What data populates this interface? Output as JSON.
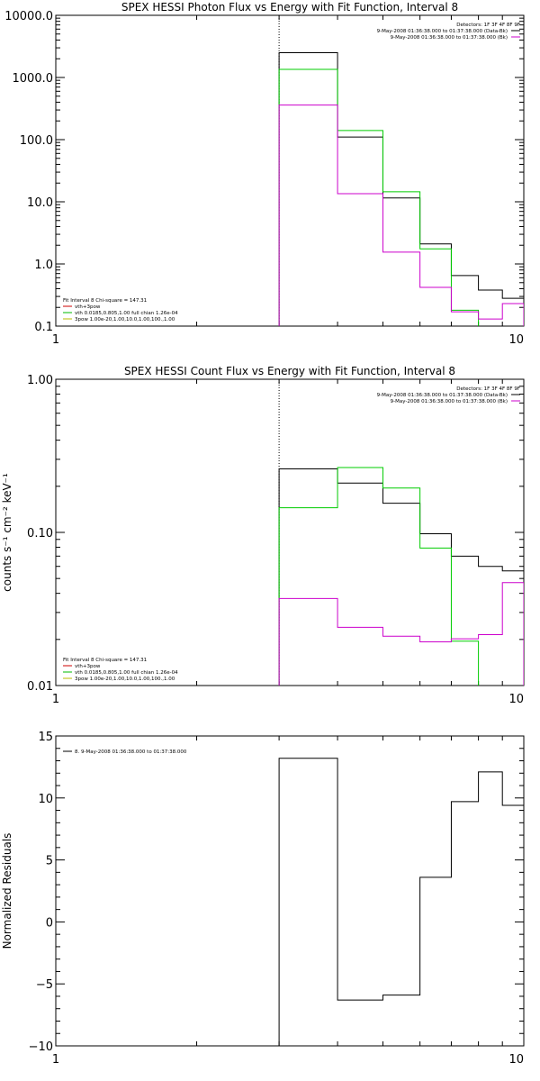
{
  "chart_data": [
    {
      "type": "line",
      "title": "SPEX HESSI Photon Flux vs Energy with Fit Function, Interval 8",
      "xlabel": "",
      "ylabel": "",
      "xscale": "log",
      "yscale": "log",
      "xlim": [
        1,
        10
      ],
      "ylim": [
        0.1,
        10000
      ],
      "x_ticks": [
        {
          "v": 1,
          "label": "1"
        },
        {
          "v": 10,
          "label": "10"
        }
      ],
      "y_ticks": [
        {
          "v": 0.1,
          "label": "0.1"
        },
        {
          "v": 1,
          "label": "1.0"
        },
        {
          "v": 10,
          "label": "10.0"
        },
        {
          "v": 100,
          "label": "100.0"
        },
        {
          "v": 1000,
          "label": "1000.0"
        },
        {
          "v": 10000,
          "label": "10000.0"
        }
      ],
      "vline": 3,
      "legend_top": {
        "title": "Detectors: 1F 3F 4F 8F 9F",
        "entries": [
          {
            "text": "9-May-2008 01:36:38.000 to 01:37:38.000 (Data-Bk)",
            "color": "#000000"
          },
          {
            "text": "9-May-2008 01:36:38.000 to 01:37:38.000 (Bk)",
            "color": "#cc00cc"
          }
        ]
      },
      "legend_fit": {
        "title": "Fit Interval 8   Chi-square = 147.31",
        "entries": [
          {
            "text": "vth+3pow",
            "color": "#cc0000"
          },
          {
            "text": "vth 0.0185,0.805,1.00  full chian 1.26e-04",
            "color": "#00bb00"
          },
          {
            "text": "3pow 1.00e-20,1.00,10.0,1.00,100.,1.00",
            "color": "#bbbb00"
          }
        ]
      },
      "series": [
        {
          "color": "#000000",
          "edges": [
            3,
            4,
            5,
            6,
            7,
            8,
            9,
            10
          ],
          "values": [
            2500,
            110,
            11.5,
            2.1,
            0.65,
            0.38,
            0.28
          ]
        },
        {
          "color": "#00cc00",
          "edges": [
            3,
            4,
            5,
            6,
            7,
            8
          ],
          "values": [
            1350,
            140,
            14.5,
            1.75,
            0.18
          ]
        },
        {
          "color": "#cc00cc",
          "edges": [
            3,
            4,
            5,
            6,
            7,
            8,
            9,
            10
          ],
          "values": [
            360,
            13.5,
            1.55,
            0.42,
            0.17,
            0.13,
            0.23
          ]
        }
      ]
    },
    {
      "type": "line",
      "title": "SPEX HESSI Count Flux vs Energy with Fit Function, Interval 8",
      "xlabel": "",
      "ylabel": "counts s⁻¹ cm⁻² keV⁻¹",
      "xscale": "log",
      "yscale": "log",
      "xlim": [
        1,
        10
      ],
      "ylim": [
        0.01,
        1
      ],
      "x_ticks": [
        {
          "v": 1,
          "label": "1"
        },
        {
          "v": 10,
          "label": "10"
        }
      ],
      "y_ticks": [
        {
          "v": 0.01,
          "label": "0.01"
        },
        {
          "v": 0.1,
          "label": "0.10"
        },
        {
          "v": 1,
          "label": "1.00"
        }
      ],
      "vline": 3,
      "legend_top": {
        "title": "Detectors: 1F 3F 4F 8F 9F",
        "entries": [
          {
            "text": "9-May-2008 01:36:38.000 to 01:37:38.000 (Data-Bk)",
            "color": "#000000"
          },
          {
            "text": "9-May-2008 01:36:38.000 to 01:37:38.000 (Bk)",
            "color": "#cc00cc"
          }
        ]
      },
      "legend_fit": {
        "title": "Fit Interval 8   Chi-square = 147.31",
        "entries": [
          {
            "text": "vth+3pow",
            "color": "#cc0000"
          },
          {
            "text": "vth 0.0185,0.805,1.00  full chian 1.26e-04",
            "color": "#00bb00"
          },
          {
            "text": "3pow 1.00e-20,1.00,10.0,1.00,100.,1.00",
            "color": "#bbbb00"
          }
        ]
      },
      "series": [
        {
          "color": "#000000",
          "edges": [
            3,
            4,
            5,
            6,
            7,
            8,
            9,
            10
          ],
          "values": [
            0.26,
            0.21,
            0.155,
            0.098,
            0.07,
            0.06,
            0.056
          ]
        },
        {
          "color": "#00cc00",
          "edges": [
            3,
            4,
            5,
            6,
            7,
            8
          ],
          "values": [
            0.145,
            0.265,
            0.195,
            0.079,
            0.0195
          ]
        },
        {
          "color": "#cc00cc",
          "edges": [
            3,
            4,
            5,
            6,
            7,
            8,
            9,
            10
          ],
          "values": [
            0.037,
            0.024,
            0.021,
            0.0193,
            0.0202,
            0.0215,
            0.047
          ]
        }
      ]
    },
    {
      "type": "line",
      "title": "",
      "xlabel": "",
      "ylabel": "Normalized Residuals",
      "xscale": "log",
      "yscale": "linear",
      "xlim": [
        1,
        10
      ],
      "ylim": [
        -10,
        15
      ],
      "x_ticks": [
        {
          "v": 1,
          "label": "1"
        },
        {
          "v": 10,
          "label": "10"
        }
      ],
      "y_ticks": [
        {
          "v": -10,
          "label": "−10"
        },
        {
          "v": -5,
          "label": "−5"
        },
        {
          "v": 0,
          "label": "0"
        },
        {
          "v": 5,
          "label": "5"
        },
        {
          "v": 10,
          "label": "10"
        },
        {
          "v": 15,
          "label": "15"
        }
      ],
      "legend_entry": {
        "text": "8.  9-May-2008 01:36:38.000 to 01:37:38.000",
        "color": "#000000"
      },
      "series": [
        {
          "color": "#000000",
          "edges": [
            3,
            4,
            5,
            6,
            7,
            8,
            9,
            10
          ],
          "values": [
            13.2,
            -6.3,
            -5.9,
            3.6,
            9.7,
            12.1,
            9.4
          ]
        }
      ]
    }
  ]
}
